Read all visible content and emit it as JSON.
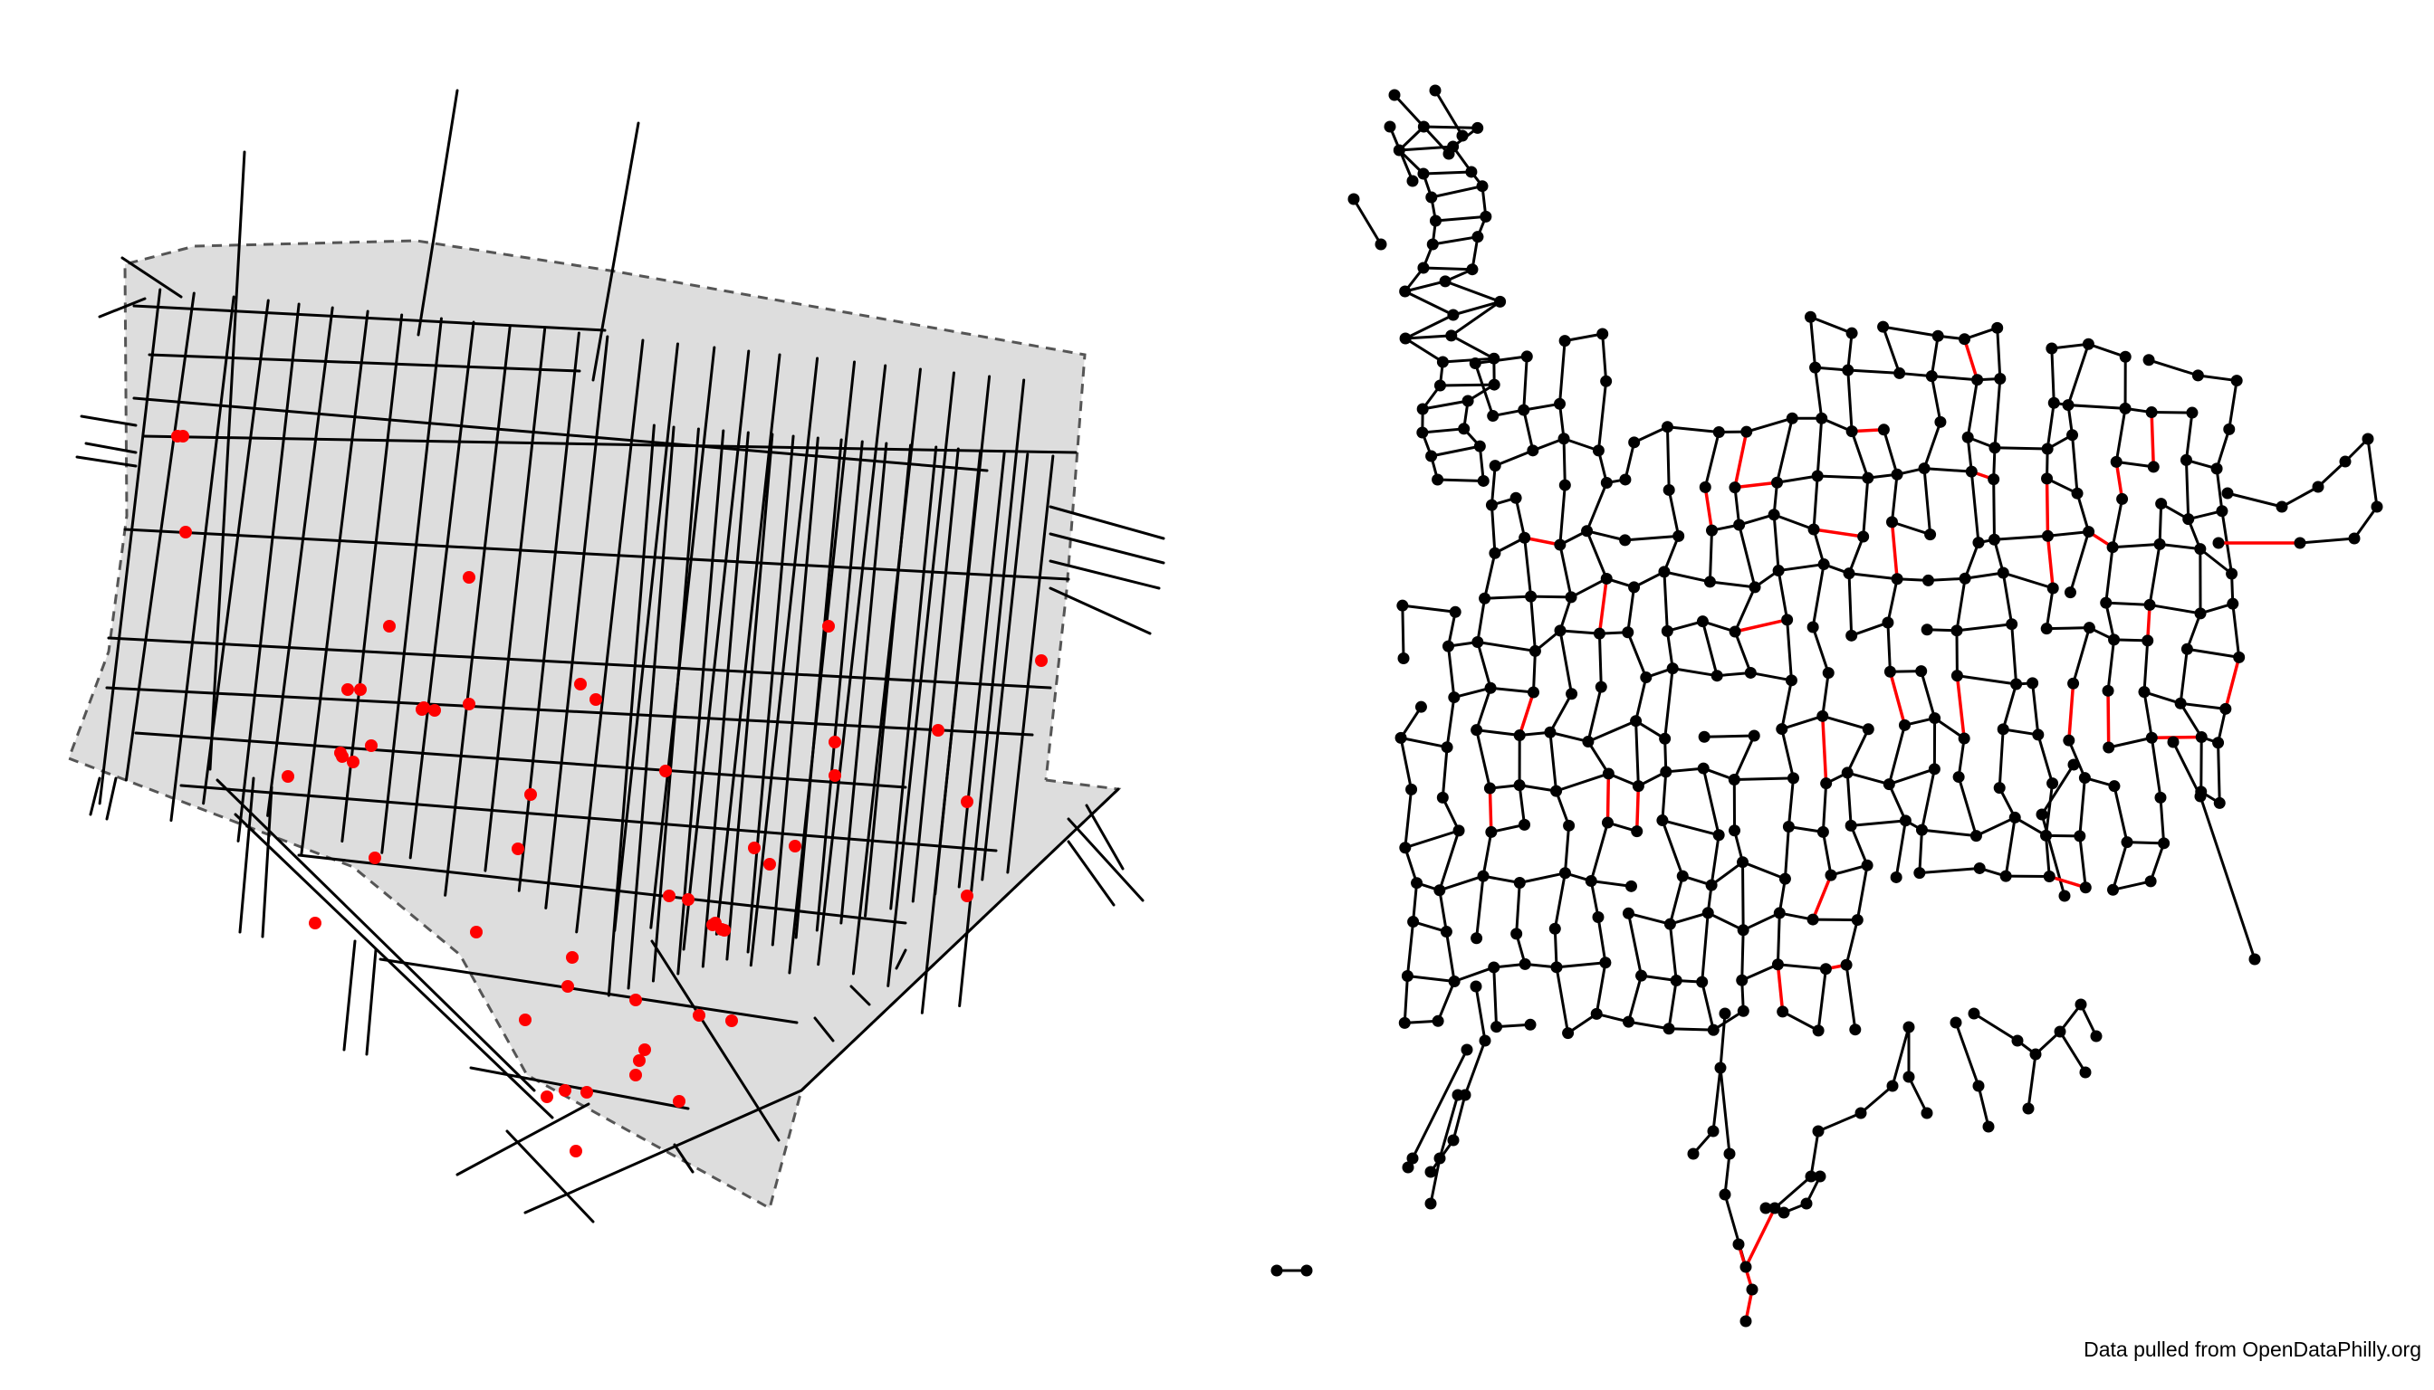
{
  "credit": "Data pulled from OpenDataPhilly.org",
  "colors": {
    "street": "#000000",
    "area_fill": "#dddddd",
    "boundary": "#555555",
    "crime_point": "#ff0000",
    "graph_node": "#000000",
    "graph_edge": "#000000",
    "highlight_edge": "#ff0000"
  },
  "panels": [
    {
      "id": "street-map",
      "description_icon": "street-grid-map"
    },
    {
      "id": "network-graph",
      "description_icon": "node-link-graph"
    }
  ]
}
